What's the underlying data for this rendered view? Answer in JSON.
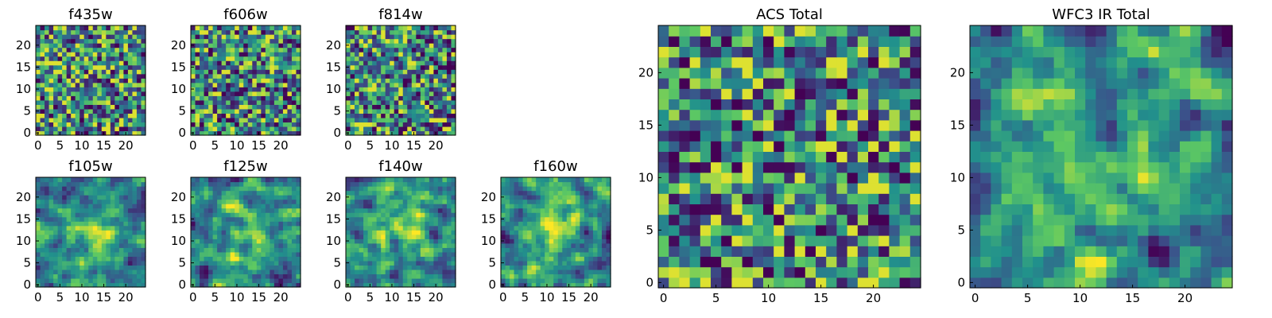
{
  "figure": {
    "colormap": [
      "#440154",
      "#3b528b",
      "#21918c",
      "#5ec962",
      "#fde725"
    ]
  },
  "chart_data": [
    {
      "type": "heatmap",
      "title": "f435w",
      "grid_size": [
        25,
        25
      ],
      "xlim": [
        -0.5,
        24.5
      ],
      "ylim": [
        -0.5,
        24.5
      ],
      "xticks": [
        "0",
        "5",
        "10",
        "15",
        "20"
      ],
      "yticks": [
        "0",
        "5",
        "10",
        "15",
        "20"
      ],
      "values": "random-noise 25x25, mostly mid-high (green/yellow) with scattered low pixels",
      "origin": "lower"
    },
    {
      "type": "heatmap",
      "title": "f606w",
      "grid_size": [
        25,
        25
      ],
      "xlim": [
        -0.5,
        24.5
      ],
      "ylim": [
        -0.5,
        24.5
      ],
      "xticks": [
        "0",
        "5",
        "10",
        "15",
        "20"
      ],
      "yticks": [
        "0",
        "5",
        "10",
        "15",
        "20"
      ],
      "values": "random-noise 25x25",
      "origin": "lower"
    },
    {
      "type": "heatmap",
      "title": "f814w",
      "grid_size": [
        25,
        25
      ],
      "xlim": [
        -0.5,
        24.5
      ],
      "ylim": [
        -0.5,
        24.5
      ],
      "xticks": [
        "0",
        "5",
        "10",
        "15",
        "20"
      ],
      "yticks": [
        "0",
        "5",
        "10",
        "15",
        "20"
      ],
      "values": "random-noise 25x25",
      "origin": "lower"
    },
    {
      "type": "heatmap",
      "title": "f105w",
      "grid_size": [
        25,
        25
      ],
      "xlim": [
        -0.5,
        24.5
      ],
      "ylim": [
        -0.5,
        24.5
      ],
      "xticks": [
        "0",
        "5",
        "10",
        "15",
        "20"
      ],
      "yticks": [
        "0",
        "5",
        "10",
        "15",
        "20"
      ],
      "values": "smooth-noise 25x25, brighter near center",
      "origin": "lower"
    },
    {
      "type": "heatmap",
      "title": "f125w",
      "grid_size": [
        25,
        25
      ],
      "xlim": [
        -0.5,
        24.5
      ],
      "ylim": [
        -0.5,
        24.5
      ],
      "xticks": [
        "0",
        "5",
        "10",
        "15",
        "20"
      ],
      "yticks": [
        "0",
        "5",
        "10",
        "15",
        "20"
      ],
      "values": "smooth-noise 25x25, brighter near center",
      "origin": "lower"
    },
    {
      "type": "heatmap",
      "title": "f140w",
      "grid_size": [
        25,
        25
      ],
      "xlim": [
        -0.5,
        24.5
      ],
      "ylim": [
        -0.5,
        24.5
      ],
      "xticks": [
        "0",
        "5",
        "10",
        "15",
        "20"
      ],
      "yticks": [
        "0",
        "5",
        "10",
        "15",
        "20"
      ],
      "values": "smooth-noise 25x25, brighter near center",
      "origin": "lower"
    },
    {
      "type": "heatmap",
      "title": "f160w",
      "grid_size": [
        25,
        25
      ],
      "xlim": [
        -0.5,
        24.5
      ],
      "ylim": [
        -0.5,
        24.5
      ],
      "xticks": [
        "0",
        "5",
        "10",
        "15",
        "20"
      ],
      "yticks": [
        "0",
        "5",
        "10",
        "15",
        "20"
      ],
      "values": "smooth-noise 25x25, brighter near center",
      "origin": "lower"
    },
    {
      "type": "heatmap",
      "title": "ACS Total",
      "grid_size": [
        25,
        25
      ],
      "xlim": [
        -0.5,
        24.5
      ],
      "ylim": [
        -0.5,
        24.5
      ],
      "xticks": [
        "0",
        "5",
        "10",
        "15",
        "20"
      ],
      "yticks": [
        "0",
        "5",
        "10",
        "15",
        "20"
      ],
      "values": "random-noise 25x25, mostly green/yellow with scattered dark pixels",
      "origin": "lower"
    },
    {
      "type": "heatmap",
      "title": "WFC3 IR Total",
      "grid_size": [
        25,
        25
      ],
      "xlim": [
        -0.5,
        24.5
      ],
      "ylim": [
        -0.5,
        24.5
      ],
      "xticks": [
        "0",
        "5",
        "10",
        "15",
        "20"
      ],
      "yticks": [
        "0",
        "5",
        "10",
        "15",
        "20"
      ],
      "values": "smooth-noise 25x25, bright center near (13,12), dark pixels near (3,20) and (16,2)",
      "origin": "lower"
    }
  ]
}
